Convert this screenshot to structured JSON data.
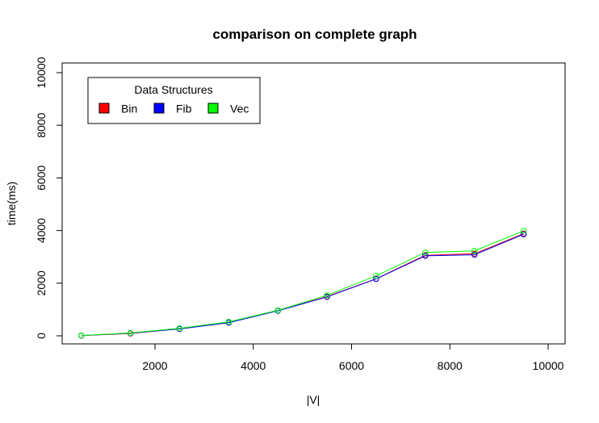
{
  "chart_data": {
    "type": "line",
    "title": "comparison on complete graph",
    "xlabel": "|V|",
    "ylabel": "time(ms)",
    "xlim": [
      0,
      10500
    ],
    "ylim": [
      0,
      10000
    ],
    "xticks": [
      "2000",
      "4000",
      "6000",
      "8000",
      "10000"
    ],
    "yticks": [
      "0",
      "2000",
      "4000",
      "6000",
      "8000",
      "10000"
    ],
    "x": [
      500,
      1500,
      2500,
      3500,
      4500,
      5500,
      6500,
      7500,
      8500,
      9500
    ],
    "series": [
      {
        "name": "Bin",
        "color": "#ff0000",
        "values": [
          8,
          90,
          270,
          510,
          960,
          1490,
          2170,
          3060,
          3120,
          3880
        ]
      },
      {
        "name": "Fib",
        "color": "#0000ff",
        "values": [
          10,
          100,
          260,
          500,
          950,
          1480,
          2160,
          3040,
          3080,
          3860
        ]
      },
      {
        "name": "Vec",
        "color": "#00ff00",
        "values": [
          12,
          110,
          285,
          530,
          970,
          1540,
          2280,
          3170,
          3230,
          3990
        ]
      }
    ],
    "legend": {
      "title": "Data Structures",
      "position": "top-left"
    },
    "grid": false
  }
}
